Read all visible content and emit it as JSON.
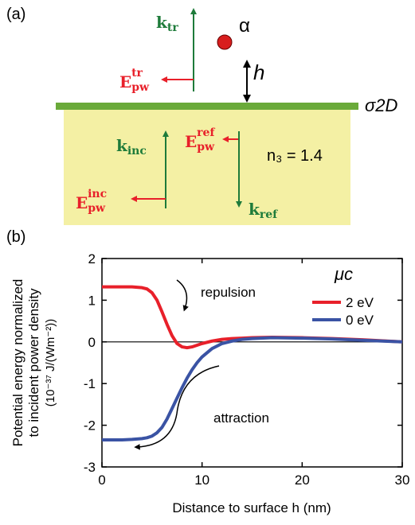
{
  "panel_a": {
    "label": "(a)",
    "k_tr": {
      "main": "k",
      "sub": "tr"
    },
    "E_tr": {
      "main": "E",
      "sub": "pw",
      "sup": "tr"
    },
    "alpha": "α",
    "h": "h",
    "sigma": "σ2D",
    "k_inc": {
      "main": "k",
      "sub": "inc"
    },
    "E_inc": {
      "main": "E",
      "sub": "pw",
      "sup": "inc"
    },
    "E_ref": {
      "main": "E",
      "sub": "pw",
      "sup": "ref"
    },
    "k_ref": {
      "main": "k",
      "sub": "ref"
    },
    "n3": "n₃ = 1.4"
  },
  "chart_data": {
    "type": "line",
    "label": "(b)",
    "x_label": "Distance to surface h (nm)",
    "y_label": [
      "Potential energy normalized",
      "to incident power density",
      "(10⁻³⁷ J/(Wm⁻²))"
    ],
    "annotations": [
      "repulsion",
      "attraction"
    ],
    "legend_title": "μc",
    "x": [
      0,
      1,
      2,
      3,
      4,
      4.5,
      5,
      5.5,
      6,
      6.5,
      7,
      7.5,
      8,
      8.5,
      9,
      9.5,
      10,
      11,
      12,
      13,
      14,
      15,
      17,
      20,
      23,
      26,
      30
    ],
    "series": [
      {
        "name": "2 eV",
        "color": "#e8202a",
        "values": [
          1.32,
          1.32,
          1.32,
          1.32,
          1.3,
          1.27,
          1.18,
          1.0,
          0.72,
          0.42,
          0.15,
          -0.04,
          -0.12,
          -0.14,
          -0.12,
          -0.08,
          -0.04,
          0.02,
          0.06,
          0.08,
          0.09,
          0.1,
          0.11,
          0.1,
          0.08,
          0.05,
          0.0
        ]
      },
      {
        "name": "0 eV",
        "color": "#3a53a4",
        "values": [
          -2.35,
          -2.35,
          -2.35,
          -2.34,
          -2.32,
          -2.3,
          -2.26,
          -2.18,
          -2.05,
          -1.85,
          -1.6,
          -1.35,
          -1.1,
          -0.87,
          -0.67,
          -0.5,
          -0.36,
          -0.16,
          -0.04,
          0.02,
          0.06,
          0.08,
          0.1,
          0.09,
          0.07,
          0.04,
          0.0
        ]
      }
    ],
    "xlim": [
      0,
      30
    ],
    "xticks": [
      0,
      10,
      20,
      30
    ],
    "ylim": [
      -3,
      2
    ],
    "yticks": [
      -3,
      -2,
      -1,
      0,
      1,
      2
    ],
    "zero_line": true
  }
}
